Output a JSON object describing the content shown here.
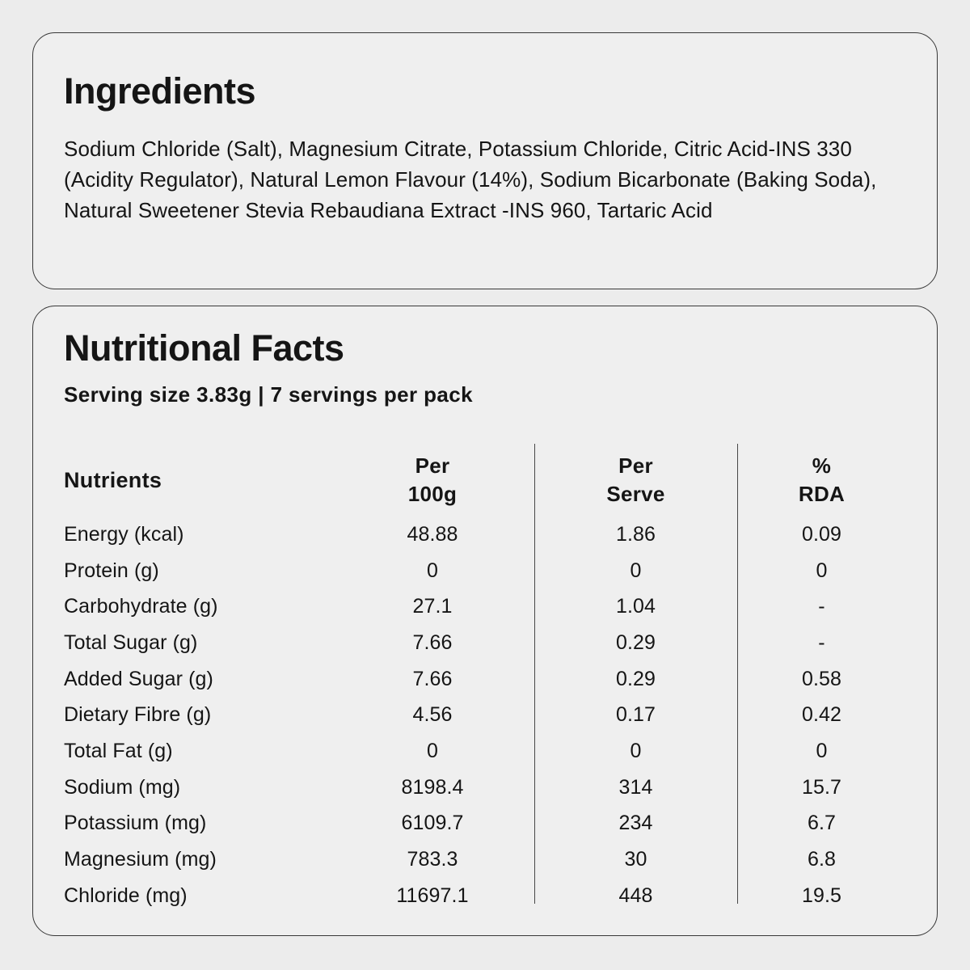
{
  "page": {
    "background_color": "#ececec",
    "card_background_color": "#efefef",
    "card_border_color": "#383838",
    "text_color": "#151515"
  },
  "ingredients_card": {
    "title": "Ingredients",
    "body": "Sodium Chloride (Salt), Magnesium Citrate, Potassium Chloride, Citric Acid-INS 330 (Acidity Regulator), Natural Lemon Flavour (14%), Sodium Bicarbonate (Baking Soda), Natural Sweetener Stevia Rebaudiana Extract -INS 960, Tartaric Acid"
  },
  "nutrition_card": {
    "title": "Nutritional Facts",
    "serving_info": "Serving size 3.83g | 7 servings per pack",
    "table": {
      "headers": {
        "nutrients": "Nutrients",
        "per_100g": "Per\n100g",
        "per_serve": "Per\nServe",
        "pct_rda": "%\nRDA"
      },
      "rows": [
        {
          "nutrient": "Energy (kcal)",
          "per_100g": "48.88",
          "per_serve": "1.86",
          "pct_rda": "0.09"
        },
        {
          "nutrient": "Protein (g)",
          "per_100g": "0",
          "per_serve": "0",
          "pct_rda": "0"
        },
        {
          "nutrient": "Carbohydrate (g)",
          "per_100g": "27.1",
          "per_serve": "1.04",
          "pct_rda": "-"
        },
        {
          "nutrient": "Total Sugar (g)",
          "per_100g": "7.66",
          "per_serve": "0.29",
          "pct_rda": "-"
        },
        {
          "nutrient": "Added Sugar (g)",
          "per_100g": "7.66",
          "per_serve": "0.29",
          "pct_rda": "0.58"
        },
        {
          "nutrient": "Dietary Fibre (g)",
          "per_100g": "4.56",
          "per_serve": "0.17",
          "pct_rda": "0.42"
        },
        {
          "nutrient": "Total Fat (g)",
          "per_100g": "0",
          "per_serve": "0",
          "pct_rda": "0"
        },
        {
          "nutrient": "Sodium (mg)",
          "per_100g": "8198.4",
          "per_serve": "314",
          "pct_rda": "15.7"
        },
        {
          "nutrient": "Potassium (mg)",
          "per_100g": "6109.7",
          "per_serve": "234",
          "pct_rda": "6.7"
        },
        {
          "nutrient": "Magnesium (mg)",
          "per_100g": "783.3",
          "per_serve": "30",
          "pct_rda": "6.8"
        },
        {
          "nutrient": "Chloride (mg)",
          "per_100g": "11697.1",
          "per_serve": "448",
          "pct_rda": "19.5"
        }
      ]
    }
  }
}
